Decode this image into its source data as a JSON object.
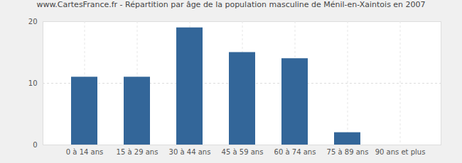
{
  "chart_data": {
    "type": "bar",
    "title": "www.CartesFrance.fr - Répartition par âge de la population masculine de Ménil-en-Xaintois en 2007",
    "categories": [
      "0 à 14 ans",
      "15 à 29 ans",
      "30 à 44 ans",
      "45 à 59 ans",
      "60 à 74 ans",
      "75 à 89 ans",
      "90 ans et plus"
    ],
    "values": [
      11,
      11,
      19,
      15,
      14,
      2,
      0
    ],
    "color": "#336699",
    "ylim": [
      0,
      20
    ],
    "yticks": [
      0,
      10,
      20
    ],
    "grid": true
  }
}
